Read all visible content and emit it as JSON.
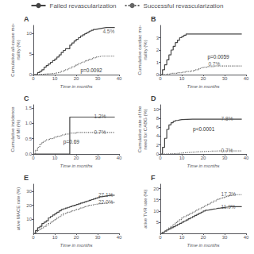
{
  "chart_data": [
    {
      "type": "step",
      "title": "A",
      "xlabel": "Time in months",
      "ylabel": "Cumulative all-cause mo-\nrtality (%)",
      "xlim": [
        0,
        40
      ],
      "ylim": [
        0,
        12
      ],
      "xticks": [
        0,
        10,
        20,
        30,
        40
      ],
      "yticks": [
        0,
        5,
        10
      ],
      "grid": false,
      "series": [
        {
          "name": "Failed revascularization",
          "color": "#444444",
          "line_style": "solid",
          "x": [
            0,
            2,
            3,
            4,
            5,
            6,
            7,
            8,
            9,
            10,
            11,
            12,
            13,
            14,
            15,
            17,
            18,
            19,
            20,
            21,
            22,
            23,
            24,
            25,
            26,
            27,
            28,
            29,
            30,
            31,
            32,
            33,
            34,
            35,
            36,
            37,
            38
          ],
          "values": [
            0,
            0.5,
            0.8,
            1.2,
            1.8,
            2.2,
            2.6,
            3.0,
            3.4,
            3.8,
            4.3,
            4.8,
            5.4,
            5.9,
            6.3,
            7.2,
            7.7,
            8.2,
            8.6,
            9.0,
            9.4,
            9.7,
            10.0,
            10.3,
            10.6,
            10.8,
            11.0,
            11.1,
            11.2,
            11.3,
            11.4,
            11.5,
            11.5,
            11.5,
            11.5,
            11.5,
            11.5
          ]
        },
        {
          "name": "Successful revascularization",
          "color": "#666666",
          "line_style": "dotted",
          "x": [
            0,
            1,
            2,
            3,
            4,
            5,
            6,
            7,
            8,
            9,
            10,
            11,
            12,
            13,
            14,
            15,
            16,
            17,
            18,
            19,
            20,
            21,
            22,
            23,
            24,
            25,
            26,
            27,
            28,
            29,
            30,
            31,
            32,
            33,
            34,
            35,
            36,
            37,
            38
          ],
          "values": [
            0,
            0.0,
            0.05,
            0.08,
            0.1,
            0.15,
            0.18,
            0.22,
            0.26,
            0.3,
            0.4,
            0.5,
            0.6,
            0.8,
            1.0,
            1.2,
            1.4,
            1.6,
            1.9,
            2.1,
            2.4,
            2.7,
            2.9,
            3.1,
            3.3,
            3.5,
            3.7,
            3.9,
            4.1,
            4.3,
            4.4,
            4.5,
            4.5,
            4.5,
            4.5,
            4.5,
            4.5,
            4.5,
            4.5
          ]
        }
      ],
      "annotations": [
        {
          "text": "4.5%",
          "x": 32,
          "y": 10.5
        },
        {
          "text": "p=0.0092"
        }
      ]
    },
    {
      "type": "step",
      "title": "B",
      "xlabel": "Time in months",
      "ylabel": "Cumulative cardiac mo-\nrtality (%)",
      "xlim": [
        0,
        40
      ],
      "ylim": [
        0,
        4
      ],
      "xticks": [
        0,
        10,
        20,
        30,
        40
      ],
      "yticks": [
        0,
        1,
        2,
        3
      ],
      "grid": false,
      "series": [
        {
          "name": "Failed revascularization",
          "color": "#444444",
          "line_style": "solid",
          "x": [
            0,
            1,
            2,
            3,
            4,
            5,
            6,
            7,
            8,
            9,
            10,
            11,
            12,
            13,
            14,
            15,
            16,
            17,
            18,
            19,
            20,
            25,
            30,
            35,
            38
          ],
          "values": [
            0,
            0.4,
            0.8,
            1.2,
            1.6,
            2.0,
            2.3,
            2.6,
            2.8,
            3.0,
            3.1,
            3.2,
            3.3,
            3.3,
            3.3,
            3.3,
            3.3,
            3.3,
            3.3,
            3.3,
            3.3,
            3.3,
            3.3,
            3.3,
            3.3
          ]
        },
        {
          "name": "Successful revascularization",
          "color": "#666666",
          "line_style": "dotted",
          "x": [
            0,
            1,
            3,
            5,
            8,
            10,
            12,
            14,
            16,
            18,
            19,
            20,
            22,
            25,
            30,
            35,
            38
          ],
          "values": [
            0,
            0.0,
            0.05,
            0.1,
            0.15,
            0.2,
            0.25,
            0.3,
            0.4,
            0.5,
            0.55,
            0.6,
            0.65,
            0.7,
            0.7,
            0.7,
            0.7
          ]
        }
      ],
      "annotations": [
        {
          "text": "0.7%",
          "x": 22,
          "y": 0.85
        },
        {
          "text": "p=0.0059"
        }
      ]
    },
    {
      "type": "step",
      "title": "C",
      "xlabel": "Time in months",
      "ylabel": "Cumulative incidence\nof MI (%)",
      "xlim": [
        0,
        40
      ],
      "ylim": [
        0,
        1.6
      ],
      "xticks": [
        0,
        10,
        20,
        30,
        40
      ],
      "yticks": [
        {
          "value": 0.0,
          "label": "0.0"
        },
        0.5,
        {
          "value": 1.0,
          "label": "1.0"
        },
        1.5
      ],
      "grid": false,
      "legend": "top",
      "series": [
        {
          "name": "Failed revascularization",
          "color": "#444444",
          "line_style": "solid",
          "x": [
            0,
            1,
            2,
            3,
            5,
            8,
            10,
            14,
            15,
            16,
            17,
            18,
            25,
            30,
            35,
            38
          ],
          "values": [
            0,
            0.0,
            0.0,
            0.0,
            0.0,
            0.0,
            0.0,
            0.0,
            0.0,
            0.0,
            1.2,
            1.2,
            1.2,
            1.2,
            1.2,
            1.2
          ]
        },
        {
          "name": "Successful revascularization",
          "color": "#666666",
          "line_style": "dotted",
          "x": [
            0,
            1,
            2,
            3,
            4,
            5,
            6,
            7,
            8,
            9,
            10,
            11,
            13,
            15,
            17,
            20,
            25,
            30,
            35,
            38
          ],
          "values": [
            0,
            0.12,
            0.22,
            0.32,
            0.38,
            0.42,
            0.46,
            0.48,
            0.5,
            0.52,
            0.55,
            0.58,
            0.62,
            0.65,
            0.68,
            0.7,
            0.7,
            0.7,
            0.7,
            0.7
          ]
        }
      ],
      "annotations": [
        {
          "text": "1.2%",
          "x": 28,
          "y": 1.22
        },
        {
          "text": "0.7%",
          "x": 28,
          "y": 0.72
        },
        {
          "text": "p=0.69"
        }
      ]
    },
    {
      "type": "step",
      "title": "D",
      "xlabel": "Time in months",
      "ylabel": "Cumulative rate of the\nneed for CABG (%)",
      "xlim": [
        0,
        40
      ],
      "ylim": [
        0,
        11
      ],
      "xticks": [
        0,
        10,
        20,
        30,
        40
      ],
      "yticks": [
        0,
        2,
        4,
        6,
        8,
        10
      ],
      "grid": false,
      "legend": "top",
      "series": [
        {
          "name": "Failed revascularization",
          "color": "#444444",
          "line_style": "solid",
          "x": [
            0,
            1,
            2,
            3,
            4,
            5,
            6,
            7,
            8,
            9,
            10,
            15,
            20,
            25,
            30,
            35,
            38
          ],
          "values": [
            0,
            1.5,
            3.5,
            5.5,
            6.5,
            7.0,
            7.3,
            7.5,
            7.6,
            7.7,
            7.8,
            7.8,
            7.8,
            7.8,
            7.8,
            7.8,
            7.8
          ]
        },
        {
          "name": "Successful revascularization",
          "color": "#666666",
          "line_style": "dotted",
          "x": [
            0,
            1,
            3,
            5,
            8,
            10,
            12,
            15,
            18,
            20,
            22,
            25,
            30,
            35,
            38
          ],
          "values": [
            0,
            0.0,
            0.05,
            0.1,
            0.2,
            0.3,
            0.4,
            0.5,
            0.55,
            0.6,
            0.65,
            0.7,
            0.7,
            0.7,
            0.7
          ]
        }
      ],
      "annotations": [
        {
          "text": "7.8%",
          "x": 28,
          "y": 7.95
        },
        {
          "text": "0.7%",
          "x": 28,
          "y": 0.85
        },
        {
          "text": "p<0.0001"
        }
      ]
    },
    {
      "type": "step",
      "title": "E",
      "xlabel": "Time in months",
      "ylabel": "ative MACE rate (%)",
      "xlim": [
        0,
        40
      ],
      "ylim": [
        0,
        35
      ],
      "xticks": [
        0,
        10,
        20,
        30,
        40
      ],
      "yticks": [
        10,
        20,
        30
      ],
      "grid": false,
      "legend": "top",
      "series": [
        {
          "name": "Failed revascularization",
          "color": "#444444",
          "line_style": "solid",
          "x": [
            0,
            1,
            2,
            3,
            4,
            5,
            6,
            7,
            8,
            9,
            10,
            11,
            12,
            13,
            14,
            15,
            16,
            17,
            18,
            19,
            20,
            21,
            22,
            23,
            24,
            25,
            26,
            27,
            28,
            29,
            30,
            31,
            32,
            33,
            34,
            35,
            36,
            37,
            38
          ],
          "values": [
            0,
            2,
            4,
            5,
            7,
            8,
            9,
            11,
            12,
            13,
            14,
            15,
            16,
            17,
            17.5,
            18,
            18.5,
            19,
            19.5,
            20,
            20.5,
            21,
            21.5,
            22,
            22.5,
            23,
            23.5,
            24,
            24.5,
            25,
            25.5,
            26,
            26.3,
            26.6,
            26.8,
            27.0,
            27.1,
            27.1,
            27.1
          ]
        },
        {
          "name": "Successful revascularization",
          "color": "#666666",
          "line_style": "dotted",
          "x": [
            0,
            1,
            2,
            3,
            4,
            5,
            6,
            7,
            8,
            9,
            10,
            11,
            12,
            13,
            14,
            15,
            16,
            17,
            18,
            19,
            20,
            21,
            22,
            23,
            24,
            25,
            26,
            27,
            28,
            29,
            30,
            31,
            32,
            33,
            34,
            35,
            36,
            37,
            38
          ],
          "values": [
            0,
            1,
            2,
            3,
            4,
            5,
            6,
            7,
            8,
            9,
            10,
            11,
            12,
            13,
            14,
            14.5,
            15,
            15.5,
            16,
            16.5,
            17,
            17.5,
            18,
            18.5,
            19,
            19.5,
            20,
            20.3,
            20.6,
            20.8,
            21.0,
            21.2,
            21.4,
            21.6,
            21.8,
            22.0,
            22.0,
            22.0,
            22.0
          ]
        }
      ],
      "annotations": [
        {
          "text": "27.1%",
          "x": 30,
          "y": 27.5
        },
        {
          "text": "22.0%",
          "x": 30,
          "y": 22.5
        }
      ]
    },
    {
      "type": "step",
      "title": "F",
      "xlabel": "Time in months",
      "ylabel": "ative TVR rate (%)",
      "xlim": [
        0,
        40
      ],
      "ylim": [
        0,
        22
      ],
      "xticks": [
        0,
        10,
        20,
        30,
        40
      ],
      "yticks": [
        5,
        10,
        15,
        20
      ],
      "grid": false,
      "legend": "top",
      "series": [
        {
          "name": "Failed revascularization",
          "color": "#444444",
          "line_style": "solid",
          "x": [
            0,
            1,
            2,
            3,
            4,
            5,
            6,
            7,
            8,
            9,
            10,
            11,
            12,
            13,
            14,
            15,
            16,
            17,
            18,
            19,
            20,
            21,
            22,
            23,
            24,
            25,
            26,
            27,
            28,
            29,
            30,
            31,
            32,
            33,
            34,
            35,
            36,
            37,
            38
          ],
          "values": [
            0,
            0.5,
            1.0,
            1.5,
            2.0,
            2.5,
            3.0,
            3.5,
            4.0,
            4.5,
            5.0,
            5.5,
            6.0,
            6.5,
            7.0,
            7.5,
            8.0,
            8.5,
            9.0,
            9.5,
            10.0,
            10.3,
            10.5,
            10.7,
            10.9,
            11.0,
            11.2,
            11.3,
            11.5,
            11.6,
            11.7,
            11.8,
            11.9,
            11.9,
            11.9,
            11.9,
            11.9,
            11.9,
            11.9
          ]
        },
        {
          "name": "Successful revascularization",
          "color": "#666666",
          "line_style": "dotted",
          "x": [
            0,
            1,
            2,
            3,
            4,
            5,
            6,
            7,
            8,
            9,
            10,
            11,
            12,
            13,
            14,
            15,
            16,
            17,
            18,
            19,
            20,
            21,
            22,
            23,
            24,
            25,
            26,
            27,
            28,
            29,
            30,
            31,
            32,
            33,
            34,
            35,
            36,
            37,
            38
          ],
          "values": [
            0,
            0.5,
            1.2,
            1.8,
            2.5,
            3.2,
            4.0,
            4.8,
            5.5,
            6.2,
            7.0,
            7.5,
            8.0,
            8.5,
            9.0,
            9.5,
            10.0,
            10.5,
            11.0,
            11.5,
            12.0,
            12.5,
            13.0,
            13.5,
            14.0,
            14.5,
            15.0,
            15.4,
            15.7,
            16.0,
            16.3,
            16.6,
            16.9,
            17.1,
            17.2,
            17.3,
            17.3,
            17.3,
            17.3
          ]
        }
      ],
      "annotations": [
        {
          "text": "11.9%",
          "x": 28,
          "y": 12.0
        },
        {
          "text": "17.3%",
          "x": 28,
          "y": 17.5
        }
      ]
    }
  ]
}
